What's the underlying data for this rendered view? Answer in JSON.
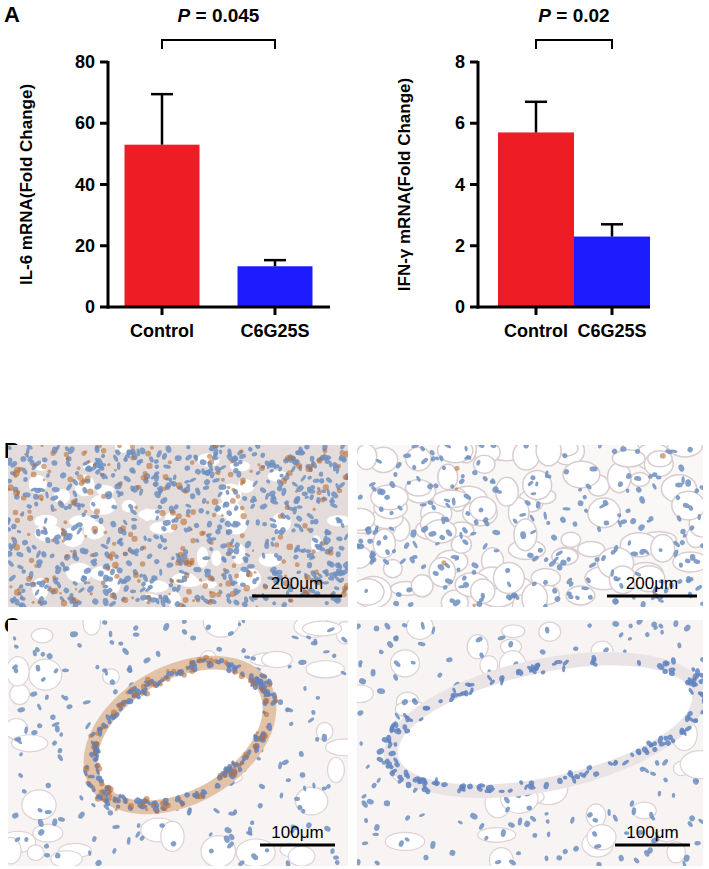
{
  "chart_data": [
    {
      "type": "bar",
      "categories": [
        "Control",
        "C6G25S"
      ],
      "values": [
        53,
        13.3
      ],
      "errors": [
        16.5,
        2
      ],
      "colors": [
        "#ee1c25",
        "#1c1cff"
      ],
      "y_label": "IL-6 mRNA(Fold Change)",
      "ylim": [
        0,
        80
      ],
      "yticks": [
        0,
        20,
        40,
        60,
        80
      ],
      "annotation": "P = 0.045"
    },
    {
      "type": "bar",
      "categories": [
        "Control",
        "C6G25S"
      ],
      "values": [
        5.7,
        2.3
      ],
      "errors": [
        1.0,
        0.4
      ],
      "colors": [
        "#ee1c25",
        "#1c1cff"
      ],
      "y_label": "IFN-γ mRNA(Fold Change)",
      "ylim": [
        0,
        8
      ],
      "yticks": [
        0,
        2,
        4,
        6,
        8
      ],
      "annotation": "P = 0.02"
    }
  ],
  "panels": [
    {
      "label": "A"
    },
    {
      "label": "B",
      "scale_bar": "200μm"
    },
    {
      "label": "C",
      "scale_bar": "100μm"
    }
  ]
}
